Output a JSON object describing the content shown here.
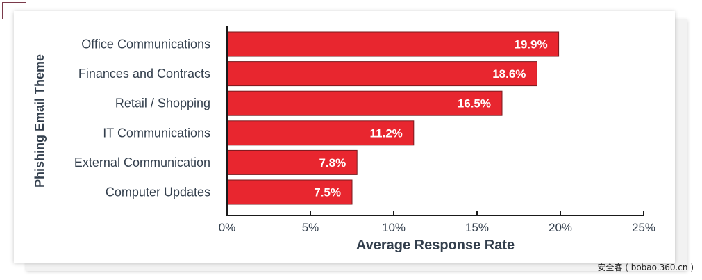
{
  "watermark": "安全客 ( bobao.360.cn )",
  "chart_data": {
    "type": "bar",
    "orientation": "horizontal",
    "title": "",
    "xlabel": "Average Response Rate",
    "ylabel": "Phishing Email Theme",
    "categories": [
      "Office Communications",
      "Finances and Contracts",
      "Retail / Shopping",
      "IT Communications",
      "External Communication",
      "Computer Updates"
    ],
    "values": [
      19.9,
      18.6,
      16.5,
      11.2,
      7.8,
      7.5
    ],
    "data_labels": [
      "19.9%",
      "18.6%",
      "16.5%",
      "11.2%",
      "7.8%",
      "7.5%"
    ],
    "xlim": [
      0,
      25
    ],
    "xticks": [
      0,
      5,
      10,
      15,
      20,
      25
    ],
    "xtick_labels": [
      "0%",
      "5%",
      "10%",
      "15%",
      "20%",
      "25%"
    ],
    "grid": false,
    "bar_color": "#e8262f",
    "bar_edge_color": "#7a1a1e",
    "axis_color": "#1a1a1a",
    "text_color": "#333f4d"
  }
}
